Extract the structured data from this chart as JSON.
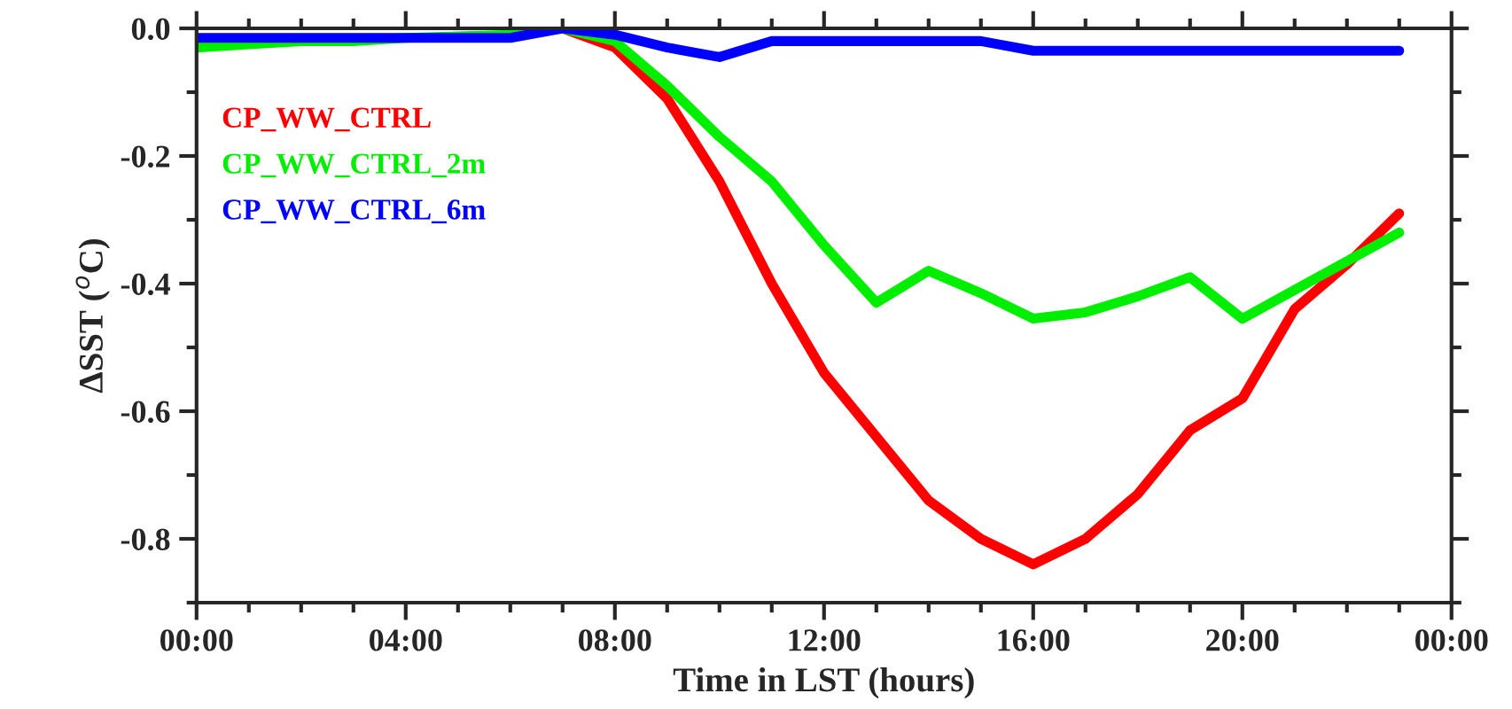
{
  "chart_data": {
    "type": "line",
    "xlabel": "Time in LST (hours)",
    "ylabel": "ΔSST ($^{o}$C)",
    "x": [
      0,
      1,
      2,
      3,
      4,
      5,
      6,
      7,
      8,
      9,
      10,
      11,
      12,
      13,
      14,
      15,
      16,
      17,
      18,
      19,
      20,
      21,
      22,
      23
    ],
    "series": [
      {
        "name": "CP_WW_CTRL",
        "color": "#ff0000",
        "values": [
          null,
          null,
          null,
          null,
          null,
          null,
          null,
          0,
          -0.03,
          -0.11,
          -0.24,
          -0.4,
          -0.54,
          -0.64,
          -0.74,
          -0.8,
          -0.84,
          -0.8,
          -0.73,
          -0.63,
          -0.58,
          -0.44,
          -0.37,
          -0.29
        ]
      },
      {
        "name": "CP_WW_CTRL_2m",
        "color": "#00ee00",
        "values": [
          -0.03,
          -0.025,
          -0.02,
          -0.02,
          -0.015,
          null,
          -0.01,
          0,
          -0.02,
          -0.09,
          -0.17,
          -0.24,
          -0.34,
          -0.43,
          -0.38,
          -0.415,
          -0.455,
          -0.445,
          -0.42,
          -0.39,
          -0.455,
          -0.41,
          -0.365,
          -0.32
        ]
      },
      {
        "name": "CP_WW_CTRL_6m",
        "color": "#0000ff",
        "values": [
          -0.015,
          -0.015,
          -0.015,
          -0.015,
          -0.015,
          -0.015,
          -0.015,
          0,
          -0.01,
          -0.03,
          -0.045,
          -0.02,
          -0.02,
          -0.02,
          -0.02,
          -0.02,
          -0.035,
          -0.035,
          -0.035,
          -0.035,
          -0.035,
          -0.035,
          -0.035,
          -0.035
        ]
      }
    ],
    "xlim": [
      0,
      24
    ],
    "xticks": [
      {
        "value": 0,
        "label": "00:00"
      },
      {
        "value": 4,
        "label": "04:00"
      },
      {
        "value": 8,
        "label": "08:00"
      },
      {
        "value": 12,
        "label": "12:00"
      },
      {
        "value": 16,
        "label": "16:00"
      },
      {
        "value": 20,
        "label": "20:00"
      },
      {
        "value": 24,
        "label": "00:00"
      }
    ],
    "ylim": [
      -0.9,
      0
    ],
    "yticks": [
      {
        "value": -0.8,
        "label": "-0.8"
      },
      {
        "value": -0.6,
        "label": "-0.6"
      },
      {
        "value": -0.4,
        "label": "-0.4"
      },
      {
        "value": -0.2,
        "label": "-0.2"
      },
      {
        "value": 0,
        "label": "0.0"
      }
    ],
    "legend": "top left",
    "grid": false,
    "marker": "none",
    "line_style": "solid"
  }
}
